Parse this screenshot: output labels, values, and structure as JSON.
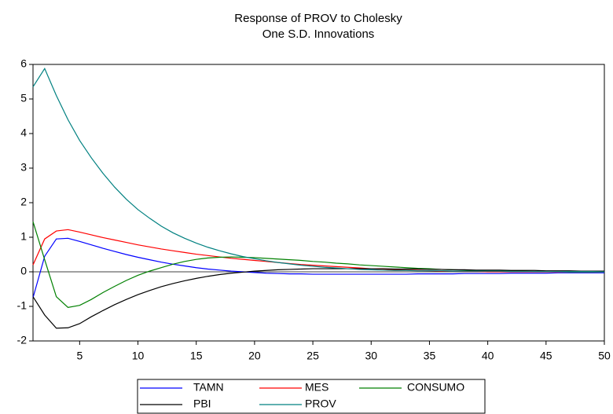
{
  "chart_data": {
    "type": "line",
    "title": "Response of PROV to Cholesky",
    "subtitle": "One S.D. Innovations",
    "x": [
      1,
      2,
      3,
      4,
      5,
      6,
      7,
      8,
      9,
      10,
      11,
      12,
      13,
      14,
      15,
      16,
      17,
      18,
      19,
      20,
      21,
      22,
      23,
      24,
      25,
      26,
      27,
      28,
      29,
      30,
      31,
      32,
      33,
      34,
      35,
      36,
      37,
      38,
      39,
      40,
      41,
      42,
      43,
      44,
      45,
      46,
      47,
      48,
      49,
      50
    ],
    "xlim": [
      1,
      50
    ],
    "xticks": [
      5,
      10,
      15,
      20,
      25,
      30,
      35,
      40,
      45,
      50
    ],
    "ylim": [
      -2,
      6
    ],
    "yticks": [
      -2,
      -1,
      0,
      1,
      2,
      3,
      4,
      5,
      6
    ],
    "series": [
      {
        "name": "TAMN",
        "color": "#0000ff",
        "values": [
          -0.75,
          0.45,
          0.95,
          0.97,
          0.88,
          0.78,
          0.68,
          0.59,
          0.5,
          0.42,
          0.35,
          0.28,
          0.22,
          0.17,
          0.12,
          0.08,
          0.05,
          0.02,
          0.0,
          -0.02,
          -0.04,
          -0.05,
          -0.06,
          -0.06,
          -0.07,
          -0.07,
          -0.07,
          -0.07,
          -0.07,
          -0.07,
          -0.07,
          -0.07,
          -0.07,
          -0.06,
          -0.06,
          -0.06,
          -0.06,
          -0.05,
          -0.05,
          -0.05,
          -0.05,
          -0.04,
          -0.04,
          -0.04,
          -0.04,
          -0.03,
          -0.03,
          -0.03,
          -0.03,
          -0.03
        ]
      },
      {
        "name": "MES",
        "color": "#ff0000",
        "values": [
          0.2,
          0.95,
          1.18,
          1.22,
          1.15,
          1.07,
          0.99,
          0.92,
          0.85,
          0.78,
          0.72,
          0.66,
          0.61,
          0.56,
          0.51,
          0.47,
          0.43,
          0.39,
          0.36,
          0.33,
          0.3,
          0.27,
          0.24,
          0.21,
          0.19,
          0.17,
          0.15,
          0.13,
          0.11,
          0.09,
          0.08,
          0.06,
          0.05,
          0.04,
          0.03,
          0.02,
          0.02,
          0.01,
          0.01,
          0.0,
          0.0,
          0.0,
          0.0,
          0.0,
          0.0,
          0.0,
          0.0,
          0.0,
          0.0,
          0.0
        ]
      },
      {
        "name": "CONSUMO",
        "color": "#008000",
        "values": [
          1.45,
          0.35,
          -0.72,
          -1.03,
          -0.97,
          -0.8,
          -0.6,
          -0.42,
          -0.25,
          -0.1,
          0.02,
          0.12,
          0.22,
          0.3,
          0.36,
          0.4,
          0.42,
          0.43,
          0.42,
          0.41,
          0.39,
          0.37,
          0.35,
          0.33,
          0.3,
          0.28,
          0.25,
          0.23,
          0.2,
          0.18,
          0.16,
          0.14,
          0.12,
          0.1,
          0.09,
          0.07,
          0.06,
          0.05,
          0.04,
          0.03,
          0.03,
          0.02,
          0.02,
          0.01,
          0.01,
          0.01,
          0.0,
          0.0,
          0.0,
          0.0
        ]
      },
      {
        "name": "PBI",
        "color": "#000000",
        "values": [
          -0.72,
          -1.25,
          -1.63,
          -1.62,
          -1.5,
          -1.3,
          -1.12,
          -0.95,
          -0.8,
          -0.66,
          -0.54,
          -0.43,
          -0.34,
          -0.26,
          -0.19,
          -0.13,
          -0.08,
          -0.04,
          -0.01,
          0.02,
          0.04,
          0.06,
          0.07,
          0.08,
          0.09,
          0.09,
          0.09,
          0.09,
          0.09,
          0.09,
          0.09,
          0.08,
          0.08,
          0.08,
          0.07,
          0.07,
          0.06,
          0.06,
          0.05,
          0.05,
          0.05,
          0.04,
          0.04,
          0.04,
          0.03,
          0.03,
          0.03,
          0.02,
          0.02,
          0.02
        ]
      },
      {
        "name": "PROV",
        "color": "#008080",
        "values": [
          5.35,
          5.88,
          5.1,
          4.4,
          3.8,
          3.3,
          2.85,
          2.45,
          2.1,
          1.8,
          1.55,
          1.32,
          1.13,
          0.97,
          0.83,
          0.71,
          0.61,
          0.52,
          0.44,
          0.38,
          0.32,
          0.27,
          0.23,
          0.19,
          0.16,
          0.13,
          0.11,
          0.09,
          0.07,
          0.06,
          0.05,
          0.04,
          0.04,
          0.03,
          0.03,
          0.03,
          0.02,
          0.02,
          0.02,
          0.02,
          0.02,
          0.01,
          0.01,
          0.01,
          0.01,
          0.01,
          0.01,
          0.01,
          0.01,
          0.0
        ]
      }
    ],
    "zero_line": true,
    "legend": "bottom"
  }
}
